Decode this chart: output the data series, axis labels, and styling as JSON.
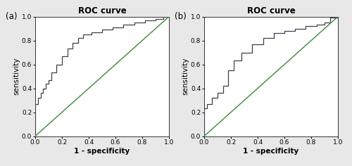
{
  "title": "ROC curve",
  "xlabel": "1 - specificity",
  "ylabel": "sensitivity",
  "label_a": "(a)",
  "label_b": "(b)",
  "xlim": [
    0.0,
    1.0
  ],
  "ylim": [
    0.0,
    1.0
  ],
  "xticks": [
    0.0,
    0.2,
    0.4,
    0.6,
    0.8,
    1.0
  ],
  "yticks": [
    0.0,
    0.2,
    0.4,
    0.6,
    0.8,
    1.0
  ],
  "diagonal_color": "#3a8a3a",
  "roc_color": "#404050",
  "roc_linewidth": 0.9,
  "diag_linewidth": 1.0,
  "background_color": "#e8e8e8",
  "panel_bg": "#ffffff",
  "roc_a_x": [
    0.0,
    0.0,
    0.02,
    0.02,
    0.04,
    0.04,
    0.06,
    0.06,
    0.08,
    0.08,
    0.1,
    0.1,
    0.12,
    0.12,
    0.16,
    0.16,
    0.2,
    0.2,
    0.24,
    0.24,
    0.28,
    0.28,
    0.32,
    0.32,
    0.36,
    0.36,
    0.42,
    0.42,
    0.5,
    0.5,
    0.58,
    0.58,
    0.66,
    0.66,
    0.74,
    0.74,
    0.82,
    0.82,
    0.9,
    0.9,
    0.96,
    0.96,
    1.0
  ],
  "roc_a_y": [
    0.0,
    0.27,
    0.27,
    0.32,
    0.32,
    0.36,
    0.36,
    0.4,
    0.4,
    0.44,
    0.44,
    0.47,
    0.47,
    0.53,
    0.53,
    0.6,
    0.6,
    0.67,
    0.67,
    0.73,
    0.73,
    0.78,
    0.78,
    0.82,
    0.82,
    0.85,
    0.85,
    0.87,
    0.87,
    0.89,
    0.89,
    0.91,
    0.91,
    0.93,
    0.93,
    0.95,
    0.95,
    0.97,
    0.97,
    0.98,
    0.98,
    1.0,
    1.0
  ],
  "roc_b_x": [
    0.0,
    0.0,
    0.02,
    0.02,
    0.06,
    0.06,
    0.1,
    0.1,
    0.14,
    0.14,
    0.18,
    0.18,
    0.22,
    0.22,
    0.28,
    0.28,
    0.36,
    0.36,
    0.44,
    0.44,
    0.52,
    0.52,
    0.6,
    0.6,
    0.68,
    0.68,
    0.76,
    0.76,
    0.84,
    0.84,
    0.9,
    0.9,
    0.94,
    0.94,
    1.0,
    1.0
  ],
  "roc_b_y": [
    0.0,
    0.23,
    0.23,
    0.27,
    0.27,
    0.32,
    0.32,
    0.36,
    0.36,
    0.42,
    0.42,
    0.55,
    0.55,
    0.63,
    0.63,
    0.7,
    0.7,
    0.77,
    0.77,
    0.82,
    0.82,
    0.86,
    0.86,
    0.88,
    0.88,
    0.9,
    0.9,
    0.92,
    0.92,
    0.93,
    0.93,
    0.95,
    0.95,
    0.99,
    0.99,
    1.0
  ]
}
